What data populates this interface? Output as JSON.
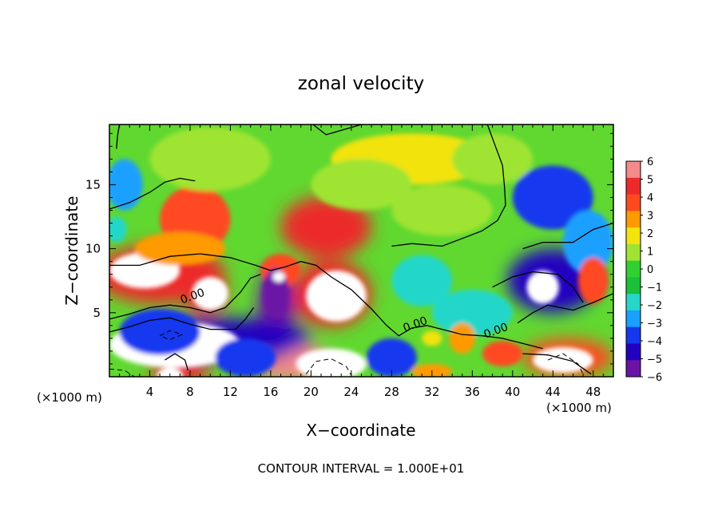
{
  "chart_data": {
    "type": "heatmap",
    "title": "zonal velocity",
    "xlabel": "X−coordinate",
    "ylabel": "Z−coordinate",
    "x_unit_left": "(×1000 m)",
    "x_unit_right": "(×1000 m)",
    "footer": "CONTOUR INTERVAL = 1.000E+01",
    "xlim": [
      0,
      50
    ],
    "ylim": [
      0,
      19.7
    ],
    "x_ticks": [
      "4",
      "8",
      "12",
      "16",
      "20",
      "24",
      "28",
      "32",
      "36",
      "40",
      "44",
      "48"
    ],
    "x_tick_values": [
      4,
      8,
      12,
      16,
      20,
      24,
      28,
      32,
      36,
      40,
      44,
      48
    ],
    "y_ticks": [
      "5",
      "10",
      "15"
    ],
    "y_tick_values": [
      5,
      10,
      15
    ],
    "contour_labels": [
      "0.00",
      "0.00",
      "0.00"
    ],
    "contour_label_positions": [
      [
        7.2,
        5.7
      ],
      [
        29.3,
        3.5
      ],
      [
        37.3,
        3.0
      ]
    ],
    "colorbar": {
      "levels": [
        "6",
        "5",
        "4",
        "3",
        "2",
        "1",
        "0",
        "−1",
        "−2",
        "−3",
        "−4",
        "−5",
        "−6"
      ],
      "values": [
        6,
        5,
        4,
        3,
        2,
        1,
        0,
        -1,
        -2,
        -3,
        -4,
        -5,
        -6
      ],
      "colors": [
        "#f58a8a",
        "#ec2a2a",
        "#ff4a20",
        "#ff9a00",
        "#f3e30e",
        "#9fe430",
        "#2fd02f",
        "#1abf3a",
        "#24d7c9",
        "#1aa0ff",
        "#1538ee",
        "#2200c0",
        "#6c13a6"
      ]
    },
    "features": [
      {
        "x": 5.0,
        "y": 8.0,
        "rx": 6.5,
        "ry": 2.3,
        "v": 5.5,
        "sat": true
      },
      {
        "x": 3.5,
        "y": 8.3,
        "rx": 3.5,
        "ry": 1.4,
        "v": 12
      },
      {
        "x": 9.5,
        "y": 6.5,
        "rx": 2.2,
        "ry": 1.6,
        "v": 5.5,
        "sat": true
      },
      {
        "x": 10.0,
        "y": 6.5,
        "rx": 1.8,
        "ry": 1.3,
        "v": 12
      },
      {
        "x": 8.5,
        "y": 12.3,
        "rx": 3.5,
        "ry": 2.6,
        "v": 4.5
      },
      {
        "x": 7.0,
        "y": 10.0,
        "rx": 4.5,
        "ry": 1.3,
        "v": 3.5
      },
      {
        "x": 21.5,
        "y": 11.7,
        "rx": 4.5,
        "ry": 2.4,
        "v": 5.5,
        "sat": true
      },
      {
        "x": 22.0,
        "y": 6.5,
        "rx": 4.0,
        "ry": 2.6,
        "v": 5.5,
        "sat": true
      },
      {
        "x": 22.5,
        "y": 6.3,
        "rx": 3.0,
        "ry": 2.0,
        "v": 12
      },
      {
        "x": 17.0,
        "y": 8.3,
        "rx": 2.0,
        "ry": 1.3,
        "v": 4.0
      },
      {
        "x": 18.0,
        "y": 1.2,
        "rx": 4.0,
        "ry": 1.5,
        "v": 6.0,
        "sat": true
      },
      {
        "x": 22.0,
        "y": 1.0,
        "rx": 3.5,
        "ry": 1.2,
        "v": 12
      },
      {
        "x": 16.5,
        "y": 5.0,
        "rx": 1.8,
        "ry": 3.8,
        "v": -5.5,
        "sat": true
      },
      {
        "x": 16.5,
        "y": 6.5,
        "rx": 1.3,
        "ry": 2.0,
        "v": -6.5
      },
      {
        "x": 16.8,
        "y": 7.8,
        "rx": 0.6,
        "ry": 0.4,
        "v": 12
      },
      {
        "x": 11.0,
        "y": 3.0,
        "rx": 9.0,
        "ry": 1.6,
        "v": -4.5,
        "sat": true
      },
      {
        "x": 6.5,
        "y": 2.5,
        "rx": 6.5,
        "ry": 1.8,
        "v": -12
      },
      {
        "x": 5.0,
        "y": 3.5,
        "rx": 4.0,
        "ry": 1.8,
        "v": -4.0
      },
      {
        "x": 7.0,
        "y": 0.4,
        "rx": 3.0,
        "ry": 1.0,
        "v": 5.0,
        "sat": true
      },
      {
        "x": 6.0,
        "y": 0.1,
        "rx": 1.3,
        "ry": 0.6,
        "v": 12
      },
      {
        "x": 13.5,
        "y": 1.5,
        "rx": 3.0,
        "ry": 1.5,
        "v": -4.0
      },
      {
        "x": 28.0,
        "y": 1.5,
        "rx": 2.5,
        "ry": 1.5,
        "v": -3.5
      },
      {
        "x": 1.5,
        "y": 15.0,
        "rx": 1.8,
        "ry": 2.0,
        "v": -2.5
      },
      {
        "x": 0.7,
        "y": 11.5,
        "rx": 1.0,
        "ry": 1.0,
        "v": -2.0
      },
      {
        "x": 31.0,
        "y": 7.5,
        "rx": 3.0,
        "ry": 2.0,
        "v": -2.0
      },
      {
        "x": 36.0,
        "y": 5.0,
        "rx": 4.0,
        "ry": 1.8,
        "v": -1.5
      },
      {
        "x": 44.0,
        "y": 14.0,
        "rx": 4.0,
        "ry": 2.5,
        "v": -3.5
      },
      {
        "x": 47.5,
        "y": 10.5,
        "rx": 2.5,
        "ry": 2.5,
        "v": -3.0
      },
      {
        "x": 44.0,
        "y": 7.5,
        "rx": 4.5,
        "ry": 2.5,
        "v": -4.5,
        "sat": true
      },
      {
        "x": 43.0,
        "y": 7.0,
        "rx": 1.6,
        "ry": 1.3,
        "v": -12
      },
      {
        "x": 48.0,
        "y": 7.5,
        "rx": 1.5,
        "ry": 1.8,
        "v": 4.0
      },
      {
        "x": 45.5,
        "y": 1.5,
        "rx": 4.5,
        "ry": 1.5,
        "v": 4.5,
        "sat": true
      },
      {
        "x": 45.0,
        "y": 1.3,
        "rx": 3.0,
        "ry": 1.0,
        "v": 12
      },
      {
        "x": 39.0,
        "y": 1.8,
        "rx": 2.0,
        "ry": 1.0,
        "v": 4.0
      },
      {
        "x": 35.0,
        "y": 3.0,
        "rx": 1.3,
        "ry": 1.2,
        "v": 3.5
      },
      {
        "x": 32.0,
        "y": 3.0,
        "rx": 1.0,
        "ry": 0.6,
        "v": 2.5
      },
      {
        "x": 32.0,
        "y": 0.4,
        "rx": 2.0,
        "ry": 0.6,
        "v": 3.0
      },
      {
        "x": 30.0,
        "y": 17.0,
        "rx": 8.0,
        "ry": 2.0,
        "v": 1.8
      },
      {
        "x": 25.0,
        "y": 15.0,
        "rx": 5.0,
        "ry": 2.0,
        "v": 1.4
      },
      {
        "x": 33.0,
        "y": 13.0,
        "rx": 5.0,
        "ry": 2.0,
        "v": 0.8
      },
      {
        "x": 38.0,
        "y": 17.0,
        "rx": 4.0,
        "ry": 2.0,
        "v": 1.0
      },
      {
        "x": 10.0,
        "y": 17.0,
        "rx": 6.0,
        "ry": 2.5,
        "v": 0.7
      }
    ],
    "contours": [
      {
        "style": "solid",
        "points": [
          [
            0,
            8.7
          ],
          [
            3,
            8.7
          ],
          [
            6,
            9.4
          ],
          [
            9,
            9.6
          ],
          [
            12,
            9.3
          ],
          [
            14.5,
            8.7
          ],
          [
            16,
            8.3
          ],
          [
            17.5,
            8.6
          ],
          [
            19,
            9.0
          ],
          [
            20.5,
            8.7
          ],
          [
            22,
            7.8
          ],
          [
            24,
            6.8
          ],
          [
            26,
            5.3
          ],
          [
            27.5,
            4.0
          ],
          [
            28.7,
            3.2
          ],
          [
            30,
            3.8
          ],
          [
            31.5,
            4.0
          ],
          [
            33,
            3.7
          ],
          [
            35,
            3.3
          ],
          [
            37,
            3.2
          ],
          [
            39,
            3.0
          ],
          [
            41,
            2.6
          ],
          [
            43,
            2.2
          ]
        ]
      },
      {
        "style": "solid",
        "points": [
          [
            0,
            4.5
          ],
          [
            2,
            4.9
          ],
          [
            4,
            5.4
          ],
          [
            6,
            5.6
          ],
          [
            8,
            5.4
          ],
          [
            10,
            5.0
          ],
          [
            11.5,
            5.4
          ],
          [
            13,
            6.6
          ],
          [
            14,
            7.7
          ],
          [
            15,
            8.0
          ]
        ]
      },
      {
        "style": "solid",
        "points": [
          [
            0,
            3.5
          ],
          [
            2,
            3.9
          ],
          [
            4,
            4.4
          ],
          [
            6,
            4.6
          ],
          [
            8,
            4.1
          ],
          [
            10,
            3.7
          ],
          [
            12.5,
            3.7
          ],
          [
            13.5,
            4.5
          ],
          [
            14.3,
            5.4
          ]
        ]
      },
      {
        "style": "solid",
        "points": [
          [
            0,
            13.1
          ],
          [
            2,
            13.6
          ],
          [
            4,
            14.4
          ],
          [
            5.5,
            15.2
          ],
          [
            7,
            15.5
          ],
          [
            8.5,
            15.3
          ]
        ]
      },
      {
        "style": "solid",
        "points": [
          [
            1.0,
            19.7
          ],
          [
            0.8,
            18.8
          ],
          [
            0.7,
            17.8
          ]
        ]
      },
      {
        "style": "solid",
        "points": [
          [
            28.0,
            10.2
          ],
          [
            30,
            10.4
          ],
          [
            33,
            10.2
          ],
          [
            35,
            10.8
          ],
          [
            37,
            11.4
          ],
          [
            38.5,
            12.2
          ],
          [
            39.3,
            13.4
          ],
          [
            39.2,
            14.8
          ],
          [
            39.0,
            16.5
          ],
          [
            38.3,
            18.0
          ],
          [
            37.5,
            19.7
          ]
        ]
      },
      {
        "style": "solid",
        "points": [
          [
            25,
            19.7
          ],
          [
            21.5,
            18.9
          ],
          [
            20.2,
            19.7
          ]
        ]
      },
      {
        "style": "solid",
        "points": [
          [
            41,
            10.0
          ],
          [
            43,
            10.5
          ],
          [
            46,
            10.5
          ],
          [
            48,
            11.5
          ],
          [
            50,
            12.0
          ]
        ]
      },
      {
        "style": "solid",
        "points": [
          [
            40.5,
            4.2
          ],
          [
            42,
            5.0
          ],
          [
            43.5,
            5.6
          ],
          [
            46,
            5.2
          ],
          [
            48,
            5.8
          ],
          [
            50,
            6.5
          ]
        ]
      },
      {
        "style": "solid",
        "points": [
          [
            38,
            7.0
          ],
          [
            40,
            7.8
          ],
          [
            42,
            8.2
          ],
          [
            44.5,
            8.0
          ],
          [
            46,
            7.0
          ],
          [
            47,
            5.8
          ]
        ]
      },
      {
        "style": "solid",
        "points": [
          [
            5.5,
            1.3
          ],
          [
            6.5,
            1.8
          ],
          [
            7.5,
            1.3
          ],
          [
            7.8,
            0.5
          ]
        ]
      },
      {
        "style": "solid",
        "points": [
          [
            41,
            1.8
          ],
          [
            43.5,
            1.7
          ],
          [
            46,
            1.2
          ],
          [
            47.8,
            0.2
          ]
        ]
      },
      {
        "style": "dashed",
        "points": [
          [
            5.0,
            3.2
          ],
          [
            6.0,
            3.6
          ],
          [
            7.2,
            3.3
          ],
          [
            6.0,
            2.9
          ],
          [
            5.0,
            3.2
          ]
        ]
      },
      {
        "style": "dashed",
        "points": [
          [
            19.5,
            0.2
          ],
          [
            20.5,
            1.2
          ],
          [
            22.0,
            1.4
          ],
          [
            23.5,
            0.8
          ],
          [
            24.0,
            0.1
          ]
        ]
      },
      {
        "style": "dashed",
        "points": [
          [
            0,
            0.6
          ],
          [
            1.5,
            0.5
          ],
          [
            2.5,
            0.0
          ]
        ]
      },
      {
        "style": "dashed",
        "points": [
          [
            43.5,
            1.3
          ],
          [
            45.0,
            1.8
          ],
          [
            46.5,
            1.0
          ],
          [
            47.0,
            0.2
          ]
        ]
      }
    ]
  }
}
